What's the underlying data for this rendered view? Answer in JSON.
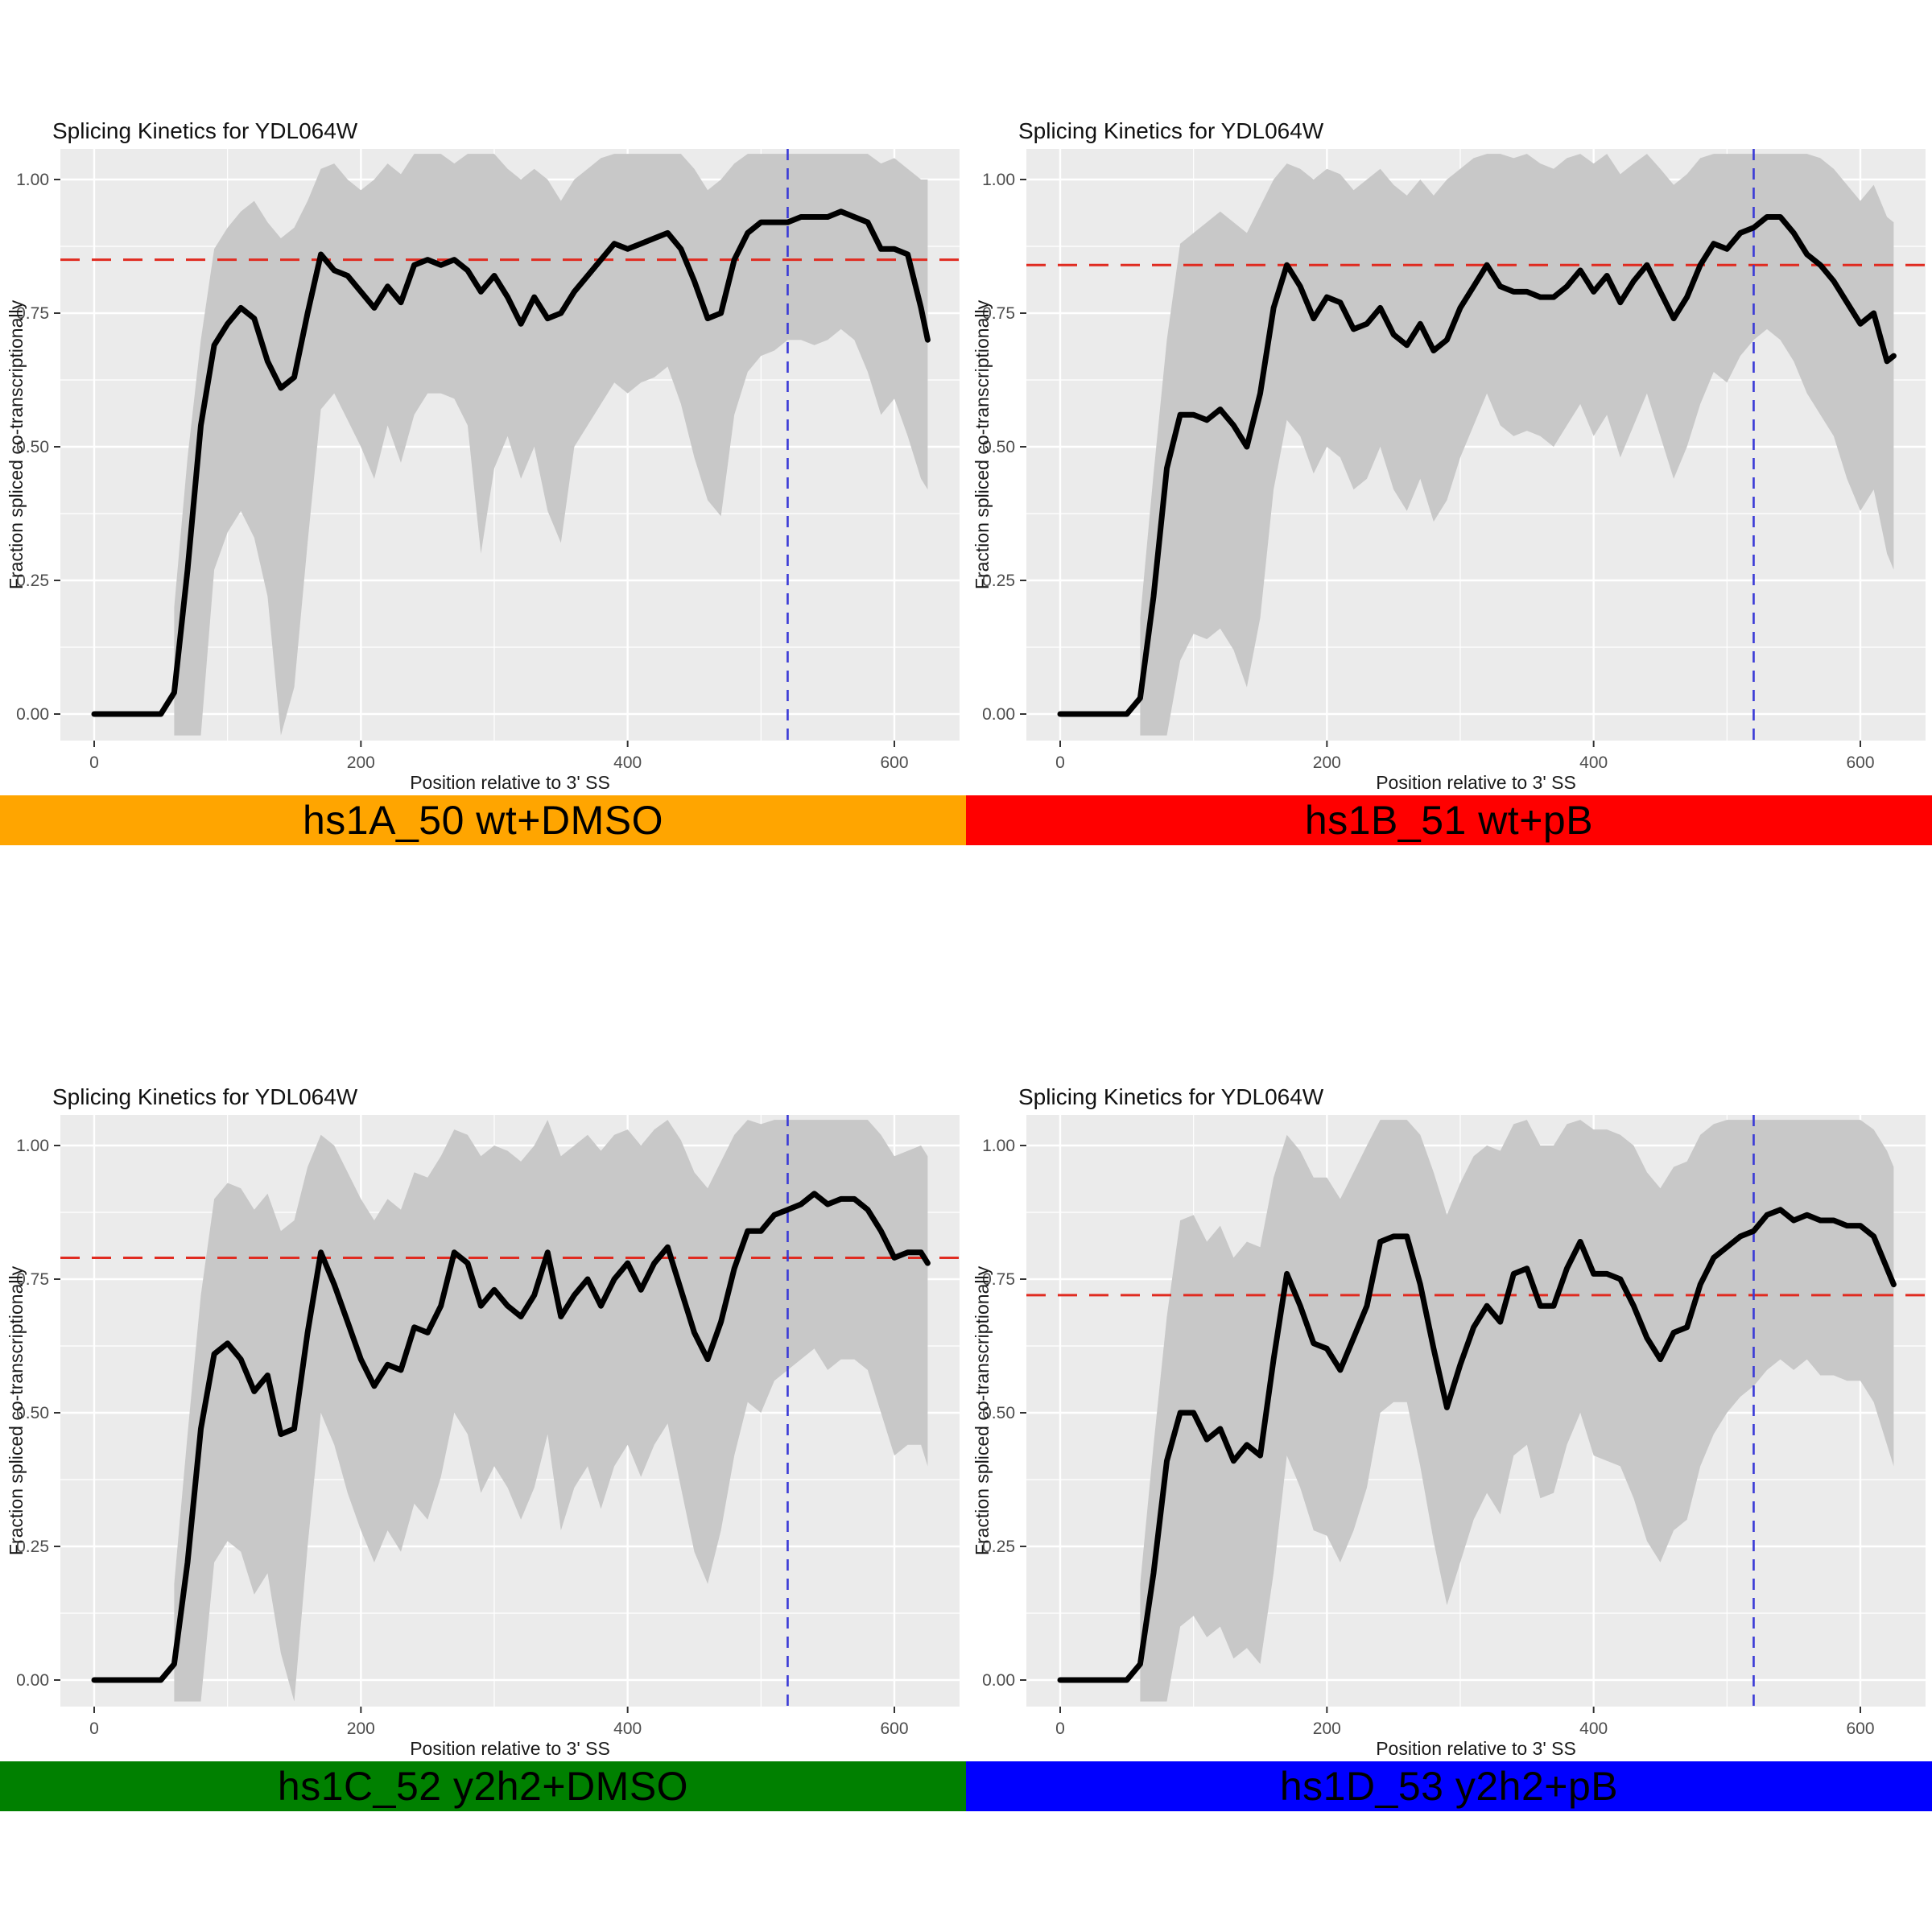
{
  "figure": {
    "rows": 2,
    "columns": 2,
    "background": "#ffffff"
  },
  "shared": {
    "title": "Splicing Kinetics for YDL064W",
    "xlabel": "Position relative to 3' SS",
    "ylabel": "Fraction spliced co-transcriptionally",
    "x_ticks": [
      0,
      200,
      400,
      600
    ],
    "x_minor_ticks": [
      100,
      300,
      500
    ],
    "y_ticks": [
      0.0,
      0.25,
      0.5,
      0.75,
      1.0
    ],
    "y_tick_labels": [
      "0.00",
      "0.25",
      "0.50",
      "0.75",
      "1.00"
    ],
    "y_minor_ticks": [
      0.125,
      0.375,
      0.625,
      0.875
    ],
    "xlim": [
      -25,
      649
    ],
    "ylim": [
      -0.05,
      1.05
    ],
    "grid": true,
    "legend": "none"
  },
  "colors": {
    "panel_bg": "#ebebeb",
    "grid": "#ffffff",
    "band": "#c8c8c8",
    "mean_line": "#000000",
    "hline": "#e02b20",
    "vline": "#3a3ad6",
    "title_text": "#111111",
    "axis_title_text": "#1a1a1a",
    "tick_text": "#4d4d4d",
    "tick_mark": "#333333",
    "banner_text": "#000000"
  },
  "chart_data": [
    {
      "type": "line",
      "title": "Splicing Kinetics for YDL064W",
      "xlabel": "Position relative to 3' SS",
      "ylabel": "Fraction spliced co-transcriptionally",
      "banner": {
        "label": "hs1A_50 wt+DMSO",
        "color": "#ffa500"
      },
      "hline_y": 0.85,
      "vline_x": 520,
      "x": [
        0,
        10,
        20,
        30,
        40,
        50,
        60,
        70,
        80,
        90,
        100,
        110,
        120,
        130,
        140,
        150,
        160,
        170,
        180,
        190,
        200,
        210,
        220,
        230,
        240,
        250,
        260,
        270,
        280,
        290,
        300,
        310,
        320,
        330,
        340,
        350,
        360,
        370,
        380,
        390,
        400,
        410,
        420,
        430,
        440,
        450,
        460,
        470,
        480,
        490,
        500,
        510,
        520,
        530,
        540,
        550,
        560,
        570,
        580,
        590,
        600,
        610,
        620,
        625
      ],
      "mean": [
        0,
        0,
        0,
        0,
        0,
        0,
        0.04,
        0.27,
        0.54,
        0.69,
        0.73,
        0.76,
        0.74,
        0.66,
        0.61,
        0.63,
        0.75,
        0.86,
        0.83,
        0.82,
        0.79,
        0.76,
        0.8,
        0.77,
        0.84,
        0.85,
        0.84,
        0.85,
        0.83,
        0.79,
        0.82,
        0.78,
        0.73,
        0.78,
        0.74,
        0.75,
        0.79,
        0.82,
        0.85,
        0.88,
        0.87,
        0.88,
        0.89,
        0.9,
        0.87,
        0.81,
        0.74,
        0.75,
        0.85,
        0.9,
        0.92,
        0.92,
        0.92,
        0.93,
        0.93,
        0.93,
        0.94,
        0.93,
        0.92,
        0.87,
        0.87,
        0.86,
        0.76,
        0.7
      ],
      "lower": [
        0,
        0,
        0,
        0,
        0,
        0,
        -0.04,
        -0.04,
        -0.04,
        0.27,
        0.34,
        0.38,
        0.33,
        0.22,
        -0.04,
        0.05,
        0.32,
        0.57,
        0.6,
        0.55,
        0.5,
        0.44,
        0.54,
        0.47,
        0.56,
        0.6,
        0.6,
        0.59,
        0.54,
        0.3,
        0.46,
        0.52,
        0.44,
        0.5,
        0.38,
        0.32,
        0.5,
        0.54,
        0.58,
        0.62,
        0.6,
        0.62,
        0.63,
        0.65,
        0.58,
        0.48,
        0.4,
        0.37,
        0.56,
        0.64,
        0.67,
        0.68,
        0.7,
        0.7,
        0.69,
        0.7,
        0.72,
        0.7,
        0.64,
        0.56,
        0.59,
        0.52,
        0.44,
        0.42
      ],
      "upper": [
        0,
        0,
        0,
        0,
        0,
        0,
        0.2,
        0.48,
        0.7,
        0.87,
        0.91,
        0.94,
        0.96,
        0.92,
        0.89,
        0.91,
        0.96,
        1.02,
        1.03,
        1.0,
        0.98,
        1.0,
        1.03,
        1.01,
        1.048,
        1.048,
        1.048,
        1.03,
        1.048,
        1.048,
        1.048,
        1.02,
        1.0,
        1.02,
        1.0,
        0.96,
        1.0,
        1.02,
        1.04,
        1.048,
        1.048,
        1.048,
        1.048,
        1.048,
        1.048,
        1.02,
        0.98,
        1.0,
        1.03,
        1.048,
        1.048,
        1.048,
        1.048,
        1.048,
        1.048,
        1.048,
        1.048,
        1.048,
        1.048,
        1.03,
        1.04,
        1.02,
        1.0,
        1.0
      ]
    },
    {
      "type": "line",
      "title": "Splicing Kinetics for YDL064W",
      "xlabel": "Position relative to 3' SS",
      "ylabel": "Fraction spliced co-transcriptionally",
      "banner": {
        "label": "hs1B_51 wt+pB",
        "color": "#ff0000"
      },
      "hline_y": 0.84,
      "vline_x": 520,
      "x": [
        0,
        10,
        20,
        30,
        40,
        50,
        60,
        70,
        80,
        90,
        100,
        110,
        120,
        130,
        140,
        150,
        160,
        170,
        180,
        190,
        200,
        210,
        220,
        230,
        240,
        250,
        260,
        270,
        280,
        290,
        300,
        310,
        320,
        330,
        340,
        350,
        360,
        370,
        380,
        390,
        400,
        410,
        420,
        430,
        440,
        450,
        460,
        470,
        480,
        490,
        500,
        510,
        520,
        530,
        540,
        550,
        560,
        570,
        580,
        590,
        600,
        610,
        620,
        625
      ],
      "mean": [
        0,
        0,
        0,
        0,
        0,
        0,
        0.03,
        0.22,
        0.46,
        0.56,
        0.56,
        0.55,
        0.57,
        0.54,
        0.5,
        0.6,
        0.76,
        0.84,
        0.8,
        0.74,
        0.78,
        0.77,
        0.72,
        0.73,
        0.76,
        0.71,
        0.69,
        0.73,
        0.68,
        0.7,
        0.76,
        0.8,
        0.84,
        0.8,
        0.79,
        0.79,
        0.78,
        0.78,
        0.8,
        0.83,
        0.79,
        0.82,
        0.77,
        0.81,
        0.84,
        0.79,
        0.74,
        0.78,
        0.84,
        0.88,
        0.87,
        0.9,
        0.91,
        0.93,
        0.93,
        0.9,
        0.86,
        0.84,
        0.81,
        0.77,
        0.73,
        0.75,
        0.66,
        0.67
      ],
      "lower": [
        0,
        0,
        0,
        0,
        0,
        0,
        -0.04,
        -0.04,
        -0.04,
        0.1,
        0.15,
        0.14,
        0.16,
        0.12,
        0.05,
        0.18,
        0.42,
        0.55,
        0.52,
        0.45,
        0.5,
        0.48,
        0.42,
        0.44,
        0.5,
        0.42,
        0.38,
        0.44,
        0.36,
        0.4,
        0.48,
        0.54,
        0.6,
        0.54,
        0.52,
        0.53,
        0.52,
        0.5,
        0.54,
        0.58,
        0.52,
        0.56,
        0.48,
        0.54,
        0.6,
        0.52,
        0.44,
        0.5,
        0.58,
        0.64,
        0.62,
        0.67,
        0.7,
        0.72,
        0.7,
        0.66,
        0.6,
        0.56,
        0.52,
        0.44,
        0.38,
        0.42,
        0.3,
        0.27
      ],
      "upper": [
        0,
        0,
        0,
        0,
        0,
        0,
        0.18,
        0.45,
        0.7,
        0.88,
        0.9,
        0.92,
        0.94,
        0.92,
        0.9,
        0.95,
        1.0,
        1.03,
        1.02,
        1.0,
        1.02,
        1.01,
        0.98,
        1.0,
        1.02,
        0.99,
        0.97,
        1.0,
        0.97,
        1.0,
        1.02,
        1.04,
        1.048,
        1.048,
        1.04,
        1.048,
        1.03,
        1.02,
        1.04,
        1.048,
        1.03,
        1.048,
        1.01,
        1.03,
        1.048,
        1.02,
        0.99,
        1.01,
        1.04,
        1.048,
        1.048,
        1.048,
        1.048,
        1.048,
        1.048,
        1.048,
        1.048,
        1.04,
        1.02,
        0.99,
        0.96,
        0.99,
        0.93,
        0.92
      ]
    },
    {
      "type": "line",
      "title": "Splicing Kinetics for YDL064W",
      "xlabel": "Position relative to 3' SS",
      "ylabel": "Fraction spliced co-transcriptionally",
      "banner": {
        "label": "hs1C_52 y2h2+DMSO",
        "color": "#008000"
      },
      "hline_y": 0.79,
      "vline_x": 520,
      "x": [
        0,
        10,
        20,
        30,
        40,
        50,
        60,
        70,
        80,
        90,
        100,
        110,
        120,
        130,
        140,
        150,
        160,
        170,
        180,
        190,
        200,
        210,
        220,
        230,
        240,
        250,
        260,
        270,
        280,
        290,
        300,
        310,
        320,
        330,
        340,
        350,
        360,
        370,
        380,
        390,
        400,
        410,
        420,
        430,
        440,
        450,
        460,
        470,
        480,
        490,
        500,
        510,
        520,
        530,
        540,
        550,
        560,
        570,
        580,
        590,
        600,
        610,
        620,
        625
      ],
      "mean": [
        0,
        0,
        0,
        0,
        0,
        0,
        0.03,
        0.22,
        0.47,
        0.61,
        0.63,
        0.6,
        0.54,
        0.57,
        0.46,
        0.47,
        0.65,
        0.8,
        0.74,
        0.67,
        0.6,
        0.55,
        0.59,
        0.58,
        0.66,
        0.65,
        0.7,
        0.8,
        0.78,
        0.7,
        0.73,
        0.7,
        0.68,
        0.72,
        0.8,
        0.68,
        0.72,
        0.75,
        0.7,
        0.75,
        0.78,
        0.73,
        0.78,
        0.81,
        0.73,
        0.65,
        0.6,
        0.67,
        0.77,
        0.84,
        0.84,
        0.87,
        0.88,
        0.89,
        0.91,
        0.89,
        0.9,
        0.9,
        0.88,
        0.84,
        0.79,
        0.8,
        0.8,
        0.78
      ],
      "lower": [
        0,
        0,
        0,
        0,
        0,
        0,
        -0.04,
        -0.04,
        -0.04,
        0.22,
        0.26,
        0.24,
        0.16,
        0.2,
        0.05,
        -0.04,
        0.25,
        0.5,
        0.44,
        0.35,
        0.28,
        0.22,
        0.28,
        0.24,
        0.33,
        0.3,
        0.38,
        0.5,
        0.46,
        0.35,
        0.4,
        0.36,
        0.3,
        0.36,
        0.46,
        0.28,
        0.36,
        0.4,
        0.32,
        0.4,
        0.44,
        0.38,
        0.44,
        0.48,
        0.36,
        0.24,
        0.18,
        0.28,
        0.42,
        0.52,
        0.5,
        0.56,
        0.58,
        0.6,
        0.62,
        0.58,
        0.6,
        0.6,
        0.58,
        0.5,
        0.42,
        0.44,
        0.44,
        0.4
      ],
      "upper": [
        0,
        0,
        0,
        0,
        0,
        0,
        0.18,
        0.46,
        0.72,
        0.9,
        0.93,
        0.92,
        0.88,
        0.91,
        0.84,
        0.86,
        0.96,
        1.02,
        1.0,
        0.95,
        0.9,
        0.86,
        0.9,
        0.88,
        0.95,
        0.94,
        0.98,
        1.03,
        1.02,
        0.98,
        1.0,
        0.99,
        0.97,
        1.0,
        1.048,
        0.98,
        1.0,
        1.02,
        0.99,
        1.02,
        1.03,
        1.0,
        1.03,
        1.048,
        1.01,
        0.95,
        0.92,
        0.97,
        1.02,
        1.048,
        1.04,
        1.048,
        1.048,
        1.048,
        1.048,
        1.048,
        1.048,
        1.048,
        1.048,
        1.02,
        0.98,
        0.99,
        1.0,
        0.98
      ]
    },
    {
      "type": "line",
      "title": "Splicing Kinetics for YDL064W",
      "xlabel": "Position relative to 3' SS",
      "ylabel": "Fraction spliced co-transcriptionally",
      "banner": {
        "label": "hs1D_53 y2h2+pB",
        "color": "#0000ff"
      },
      "hline_y": 0.72,
      "vline_x": 520,
      "x": [
        0,
        10,
        20,
        30,
        40,
        50,
        60,
        70,
        80,
        90,
        100,
        110,
        120,
        130,
        140,
        150,
        160,
        170,
        180,
        190,
        200,
        210,
        220,
        230,
        240,
        250,
        260,
        270,
        280,
        290,
        300,
        310,
        320,
        330,
        340,
        350,
        360,
        370,
        380,
        390,
        400,
        410,
        420,
        430,
        440,
        450,
        460,
        470,
        480,
        490,
        500,
        510,
        520,
        530,
        540,
        550,
        560,
        570,
        580,
        590,
        600,
        610,
        620,
        625
      ],
      "mean": [
        0,
        0,
        0,
        0,
        0,
        0,
        0.03,
        0.2,
        0.41,
        0.5,
        0.5,
        0.45,
        0.47,
        0.41,
        0.44,
        0.42,
        0.6,
        0.76,
        0.7,
        0.63,
        0.62,
        0.58,
        0.64,
        0.7,
        0.82,
        0.83,
        0.83,
        0.74,
        0.62,
        0.51,
        0.59,
        0.66,
        0.7,
        0.67,
        0.76,
        0.77,
        0.7,
        0.7,
        0.77,
        0.82,
        0.76,
        0.76,
        0.75,
        0.7,
        0.64,
        0.6,
        0.65,
        0.66,
        0.74,
        0.79,
        0.81,
        0.83,
        0.84,
        0.87,
        0.88,
        0.86,
        0.87,
        0.86,
        0.86,
        0.85,
        0.85,
        0.83,
        0.77,
        0.74
      ],
      "lower": [
        0,
        0,
        0,
        0,
        0,
        0,
        -0.04,
        -0.04,
        -0.04,
        0.1,
        0.12,
        0.08,
        0.1,
        0.04,
        0.06,
        0.03,
        0.2,
        0.42,
        0.36,
        0.28,
        0.27,
        0.22,
        0.28,
        0.36,
        0.5,
        0.52,
        0.52,
        0.4,
        0.26,
        0.14,
        0.22,
        0.3,
        0.35,
        0.31,
        0.42,
        0.44,
        0.34,
        0.35,
        0.44,
        0.5,
        0.42,
        0.41,
        0.4,
        0.34,
        0.26,
        0.22,
        0.28,
        0.3,
        0.4,
        0.46,
        0.5,
        0.53,
        0.55,
        0.58,
        0.6,
        0.58,
        0.6,
        0.57,
        0.57,
        0.56,
        0.56,
        0.52,
        0.44,
        0.4
      ],
      "upper": [
        0,
        0,
        0,
        0,
        0,
        0,
        0.18,
        0.44,
        0.68,
        0.86,
        0.87,
        0.82,
        0.85,
        0.79,
        0.82,
        0.81,
        0.94,
        1.02,
        0.99,
        0.94,
        0.94,
        0.9,
        0.95,
        1.0,
        1.048,
        1.048,
        1.048,
        1.02,
        0.95,
        0.87,
        0.93,
        0.98,
        1.0,
        0.99,
        1.04,
        1.048,
        1.0,
        1.0,
        1.04,
        1.048,
        1.03,
        1.03,
        1.02,
        1.0,
        0.95,
        0.92,
        0.96,
        0.97,
        1.02,
        1.04,
        1.048,
        1.048,
        1.048,
        1.048,
        1.048,
        1.048,
        1.048,
        1.048,
        1.048,
        1.048,
        1.048,
        1.03,
        0.99,
        0.96
      ]
    }
  ]
}
